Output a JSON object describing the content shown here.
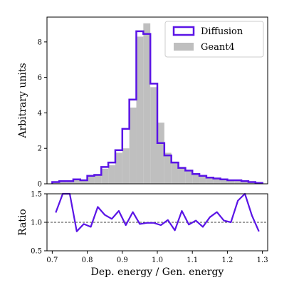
{
  "chart_data": [
    {
      "type": "bar",
      "panel": "top",
      "xlabel": "",
      "ylabel": "Arbitrary units",
      "xlim": [
        0.685,
        1.315
      ],
      "ylim": [
        0,
        9.4
      ],
      "yticks": [
        0,
        2,
        4,
        6,
        8
      ],
      "yticklabels": [
        "0",
        "2",
        "4",
        "6",
        "8"
      ],
      "grid": false,
      "legend_position": "top-right",
      "bin_edges": [
        0.7,
        0.72,
        0.74,
        0.76,
        0.78,
        0.8,
        0.82,
        0.84,
        0.86,
        0.88,
        0.9,
        0.92,
        0.94,
        0.96,
        0.98,
        1.0,
        1.02,
        1.04,
        1.06,
        1.08,
        1.1,
        1.12,
        1.14,
        1.16,
        1.18,
        1.2,
        1.22,
        1.24,
        1.26,
        1.28,
        1.3
      ],
      "series": [
        {
          "name": "Diffusion",
          "style": "step",
          "color": "#5a14e6",
          "values": [
            0.1,
            0.15,
            0.15,
            0.25,
            0.2,
            0.45,
            0.5,
            0.95,
            1.2,
            1.9,
            3.1,
            4.75,
            8.6,
            8.45,
            5.65,
            2.3,
            1.6,
            1.2,
            0.9,
            0.75,
            0.55,
            0.45,
            0.35,
            0.3,
            0.25,
            0.2,
            0.2,
            0.15,
            0.1,
            0.05
          ]
        },
        {
          "name": "Geant4",
          "style": "filled",
          "color": "#bfbfbf",
          "values": [
            0.08,
            0.12,
            0.2,
            0.22,
            0.22,
            0.42,
            0.55,
            0.85,
            1.05,
            1.75,
            2.0,
            4.3,
            8.3,
            9.05,
            5.45,
            3.45,
            1.75,
            1.25,
            0.95,
            0.75,
            0.55,
            0.4,
            0.35,
            0.3,
            0.25,
            0.2,
            0.15,
            0.12,
            0.1,
            0.05
          ]
        }
      ]
    },
    {
      "type": "line",
      "panel": "bottom",
      "xlabel": "Dep. energy / Gen. energy",
      "ylabel": "Ratio",
      "xlim": [
        0.685,
        1.315
      ],
      "ylim": [
        0.5,
        1.5
      ],
      "xticks": [
        0.7,
        0.8,
        0.9,
        1.0,
        1.1,
        1.2,
        1.3
      ],
      "xticklabels": [
        "0.7",
        "0.8",
        "0.9",
        "1.0",
        "1.1",
        "1.2",
        "1.3"
      ],
      "yticks": [
        0.5,
        1.0,
        1.5
      ],
      "yticklabels": [
        "0.5",
        "1.0",
        "1.5"
      ],
      "reference_line": 1.0,
      "grid": false,
      "series": [
        {
          "name": "",
          "color": "#5a14e6",
          "x": [
            0.71,
            0.73,
            0.75,
            0.77,
            0.79,
            0.81,
            0.83,
            0.85,
            0.87,
            0.89,
            0.91,
            0.93,
            0.95,
            0.97,
            0.99,
            1.01,
            1.03,
            1.05,
            1.07,
            1.09,
            1.11,
            1.13,
            1.15,
            1.17,
            1.19,
            1.21,
            1.23,
            1.25,
            1.27,
            1.29
          ],
          "y": [
            1.17,
            1.62,
            1.58,
            0.84,
            0.97,
            0.92,
            1.27,
            1.13,
            1.06,
            1.2,
            0.95,
            1.18,
            0.97,
            0.99,
            0.99,
            0.95,
            1.04,
            0.86,
            1.2,
            0.96,
            1.03,
            0.92,
            1.09,
            1.18,
            1.03,
            1.0,
            1.38,
            1.62,
            1.12,
            0.84
          ]
        }
      ]
    }
  ]
}
